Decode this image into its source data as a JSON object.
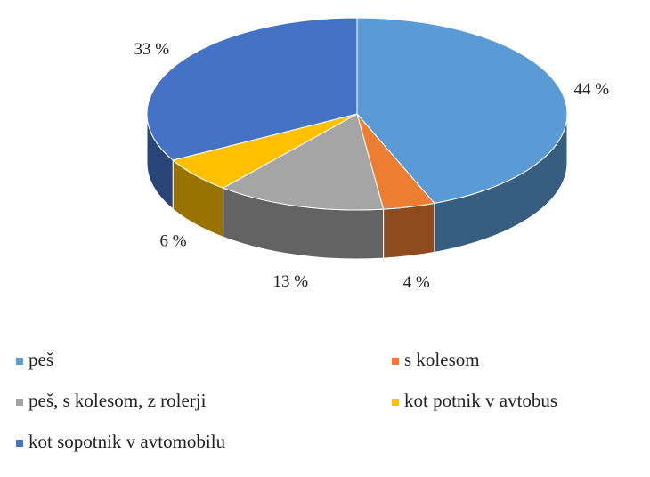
{
  "chart_data": {
    "type": "pie",
    "categories": [
      "peš",
      "s kolesom",
      "peš, s kolesom, z rolerji",
      "kot potnik v avtobus",
      "kot sopotnik v avtomobilu"
    ],
    "values": [
      44,
      4,
      13,
      6,
      33
    ],
    "value_labels": [
      "44 %",
      "4 %",
      "13 %",
      "6 %",
      "33 %"
    ],
    "colors": [
      "#5b9bd5",
      "#ed7d31",
      "#a5a5a5",
      "#ffc000",
      "#4472c4"
    ]
  }
}
